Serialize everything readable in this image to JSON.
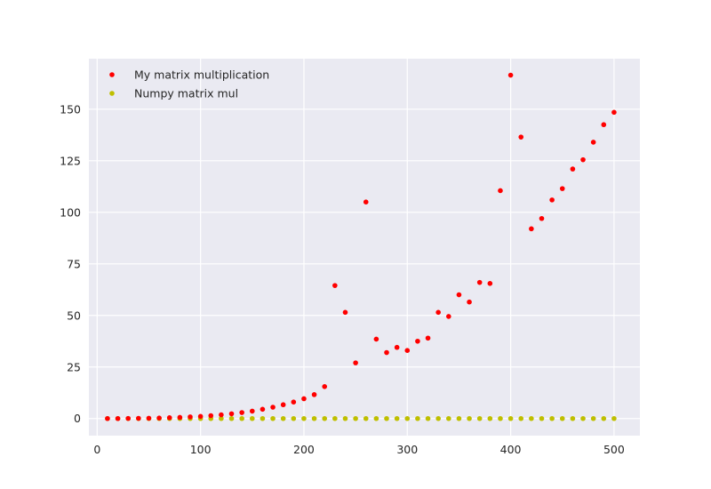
{
  "chart_data": {
    "type": "scatter",
    "title": "",
    "xlabel": "",
    "ylabel": "",
    "xlim": [
      -8,
      525
    ],
    "ylim": [
      -8.3,
      174.5
    ],
    "x_ticks": [
      0,
      100,
      200,
      300,
      400,
      500
    ],
    "y_ticks": [
      0,
      25,
      50,
      75,
      100,
      125,
      150
    ],
    "x_tick_labels": [
      "0",
      "100",
      "200",
      "300",
      "400",
      "500"
    ],
    "y_tick_labels": [
      "0",
      "25",
      "50",
      "75",
      "100",
      "125",
      "150"
    ],
    "grid": true,
    "legend_position": "upper-left",
    "background_color": "#eaeaf2",
    "grid_color": "#ffffff",
    "x": [
      10,
      20,
      30,
      40,
      50,
      60,
      70,
      80,
      90,
      100,
      110,
      120,
      130,
      140,
      150,
      160,
      170,
      180,
      190,
      200,
      210,
      220,
      230,
      240,
      250,
      260,
      270,
      280,
      290,
      300,
      310,
      320,
      330,
      340,
      350,
      360,
      370,
      380,
      390,
      400,
      410,
      420,
      430,
      440,
      450,
      460,
      470,
      480,
      490,
      500
    ],
    "series": [
      {
        "name": "My matrix multiplication",
        "color": "#ff0000",
        "values": [
          0.0,
          0.0,
          0.05,
          0.1,
          0.15,
          0.25,
          0.4,
          0.55,
          0.8,
          1.05,
          1.4,
          1.8,
          2.3,
          2.9,
          3.6,
          4.5,
          5.5,
          6.7,
          8.0,
          9.6,
          11.6,
          15.5,
          64.5,
          51.5,
          27.0,
          105.0,
          38.5,
          32.0,
          34.5,
          33.0,
          37.5,
          39.0,
          51.5,
          49.5,
          60.0,
          56.5,
          66.0,
          65.5,
          110.5,
          166.5,
          136.5,
          92.0,
          97.0,
          106.0,
          111.5,
          121.0,
          125.5,
          134.0,
          142.5,
          148.5
        ]
      },
      {
        "name": "Numpy matrix mul",
        "color": "#bfbf00",
        "values": [
          0.0,
          0.0,
          0.0,
          0.0,
          0.0,
          0.0,
          0.0,
          0.0,
          0.0,
          0.0,
          0.0,
          0.0,
          0.0,
          0.0,
          0.0,
          0.0,
          0.0,
          0.0,
          0.0,
          0.0,
          0.0,
          0.0,
          0.0,
          0.0,
          0.0,
          0.0,
          0.0,
          0.0,
          0.0,
          0.0,
          0.0,
          0.0,
          0.0,
          0.0,
          0.0,
          0.0,
          0.0,
          0.0,
          0.0,
          0.0,
          0.0,
          0.0,
          0.0,
          0.0,
          0.0,
          0.0,
          0.0,
          0.0,
          0.0,
          0.0
        ]
      }
    ]
  }
}
